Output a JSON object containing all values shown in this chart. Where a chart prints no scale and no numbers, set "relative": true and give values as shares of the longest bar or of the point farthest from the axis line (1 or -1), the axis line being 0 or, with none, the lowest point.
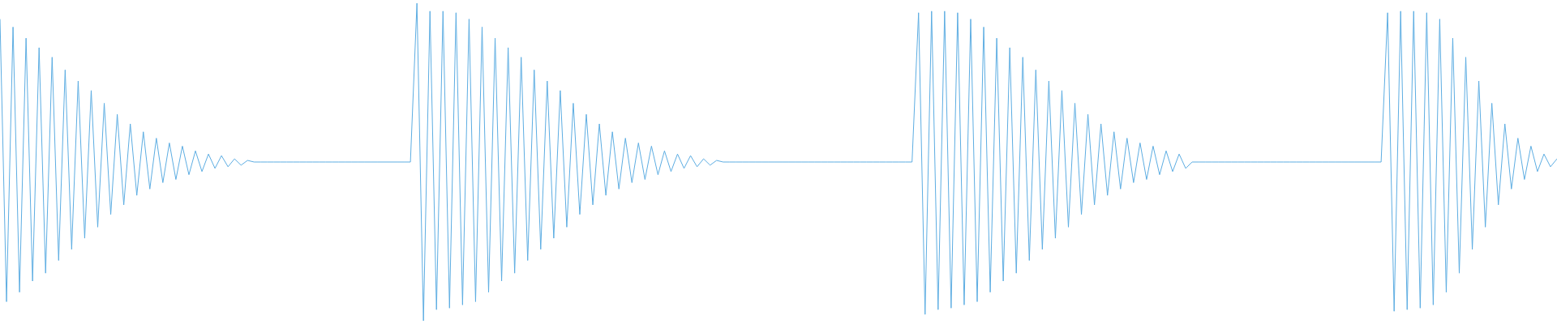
{
  "chart_data": {
    "type": "line",
    "relative": true,
    "legend": false,
    "marker": "none",
    "categories": [
      null,
      null,
      null,
      null,
      null,
      null,
      null,
      null,
      null,
      null,
      null,
      null,
      null,
      null,
      null,
      null,
      null,
      null,
      null,
      null,
      null,
      null,
      null,
      null,
      null,
      null,
      null,
      null,
      null,
      null,
      null,
      null,
      null,
      null,
      null,
      null,
      null,
      null,
      null,
      null,
      null,
      null,
      null,
      null,
      null,
      null,
      null,
      null,
      null,
      null,
      null,
      null,
      null,
      null,
      null,
      null,
      null,
      null,
      null,
      null,
      null,
      null,
      null,
      null,
      null,
      null,
      null,
      null,
      null,
      null,
      null,
      null,
      null,
      null,
      null,
      null,
      null,
      null,
      null,
      null,
      null,
      null,
      null,
      null,
      null,
      null,
      null,
      null,
      null,
      null,
      null,
      null,
      null,
      null,
      null,
      null,
      null,
      null,
      null,
      null,
      null,
      null,
      null,
      null,
      null,
      null,
      null,
      null,
      null,
      null,
      null,
      null,
      null,
      null,
      null,
      null,
      null,
      null,
      null,
      null,
      null,
      null,
      null,
      null,
      null,
      null,
      null,
      null,
      null,
      null,
      null,
      null,
      null,
      null,
      null,
      null,
      null,
      null,
      null,
      null,
      null,
      null,
      null,
      null,
      null,
      null,
      null,
      null,
      null,
      null,
      null,
      null,
      null,
      null,
      null,
      null,
      null,
      null,
      null,
      null,
      null,
      null,
      null,
      null,
      null,
      null,
      null,
      null,
      null,
      null,
      null,
      null,
      null,
      null,
      null,
      null,
      null,
      null,
      null,
      null,
      null,
      null,
      null,
      null,
      null,
      null,
      null,
      null,
      null,
      null,
      null,
      null,
      null,
      null,
      null,
      null,
      null,
      null,
      null,
      null,
      null,
      null,
      null,
      null,
      null,
      null,
      null,
      null,
      null,
      null,
      null,
      null,
      null,
      null,
      null,
      null,
      null,
      null,
      null,
      null,
      null,
      null,
      null,
      null,
      null,
      null,
      null,
      null,
      null,
      null,
      null,
      null,
      null,
      null,
      null,
      null,
      null,
      null,
      null,
      null
    ],
    "series": [
      {
        "color": "#5dade2",
        "values": [
          0.95,
          0.06,
          0.925,
          0.09,
          0.89,
          0.125,
          0.86,
          0.15,
          0.83,
          0.19,
          0.79,
          0.225,
          0.755,
          0.26,
          0.725,
          0.295,
          0.685,
          0.335,
          0.65,
          0.365,
          0.62,
          0.395,
          0.595,
          0.415,
          0.575,
          0.435,
          0.56,
          0.445,
          0.55,
          0.46,
          0.535,
          0.47,
          0.525,
          0.48,
          0.52,
          0.485,
          0.51,
          0.49,
          0.505,
          0.5,
          0.5,
          0.5,
          0.5,
          0.5,
          0.5,
          0.5,
          0.5,
          0.5,
          0.5,
          0.5,
          0.5,
          0.5,
          0.5,
          0.5,
          0.5,
          0.5,
          0.5,
          0.5,
          0.5,
          0.5,
          0.5,
          0.5,
          0.5,
          0.5,
          1,
          0,
          0.975,
          0.035,
          0.975,
          0.04,
          0.97,
          0.05,
          0.95,
          0.06,
          0.925,
          0.09,
          0.89,
          0.125,
          0.86,
          0.15,
          0.83,
          0.19,
          0.79,
          0.225,
          0.755,
          0.26,
          0.725,
          0.295,
          0.685,
          0.335,
          0.65,
          0.365,
          0.62,
          0.395,
          0.595,
          0.415,
          0.575,
          0.435,
          0.56,
          0.445,
          0.55,
          0.46,
          0.535,
          0.47,
          0.525,
          0.48,
          0.52,
          0.485,
          0.51,
          0.49,
          0.505,
          0.5,
          0.5,
          0.5,
          0.5,
          0.5,
          0.5,
          0.5,
          0.5,
          0.5,
          0.5,
          0.5,
          0.5,
          0.5,
          0.5,
          0.5,
          0.5,
          0.5,
          0.5,
          0.5,
          0.5,
          0.5,
          0.5,
          0.5,
          0.5,
          0.5,
          0.5,
          0.5,
          0.5,
          0.5,
          0.5,
          0.97,
          0.02,
          0.975,
          0.035,
          0.975,
          0.04,
          0.97,
          0.05,
          0.95,
          0.06,
          0.925,
          0.09,
          0.89,
          0.125,
          0.86,
          0.15,
          0.83,
          0.19,
          0.79,
          0.225,
          0.755,
          0.26,
          0.725,
          0.295,
          0.685,
          0.335,
          0.65,
          0.365,
          0.62,
          0.395,
          0.595,
          0.415,
          0.575,
          0.435,
          0.56,
          0.445,
          0.55,
          0.46,
          0.535,
          0.47,
          0.525,
          0.48,
          0.5,
          0.5,
          0.5,
          0.5,
          0.5,
          0.5,
          0.5,
          0.5,
          0.5,
          0.5,
          0.5,
          0.5,
          0.5,
          0.5,
          0.5,
          0.5,
          0.5,
          0.5,
          0.5,
          0.5,
          0.5,
          0.5,
          0.5,
          0.5,
          0.5,
          0.5,
          0.5,
          0.5,
          0.5,
          0.5,
          0.97,
          0.03,
          0.975,
          0.035,
          0.975,
          0.04,
          0.97,
          0.05,
          0.95,
          0.09,
          0.89,
          0.15,
          0.83,
          0.225,
          0.755,
          0.295,
          0.685,
          0.365,
          0.62,
          0.415,
          0.575,
          0.445,
          0.55,
          0.47,
          0.525,
          0.485,
          0.51
        ]
      }
    ]
  }
}
